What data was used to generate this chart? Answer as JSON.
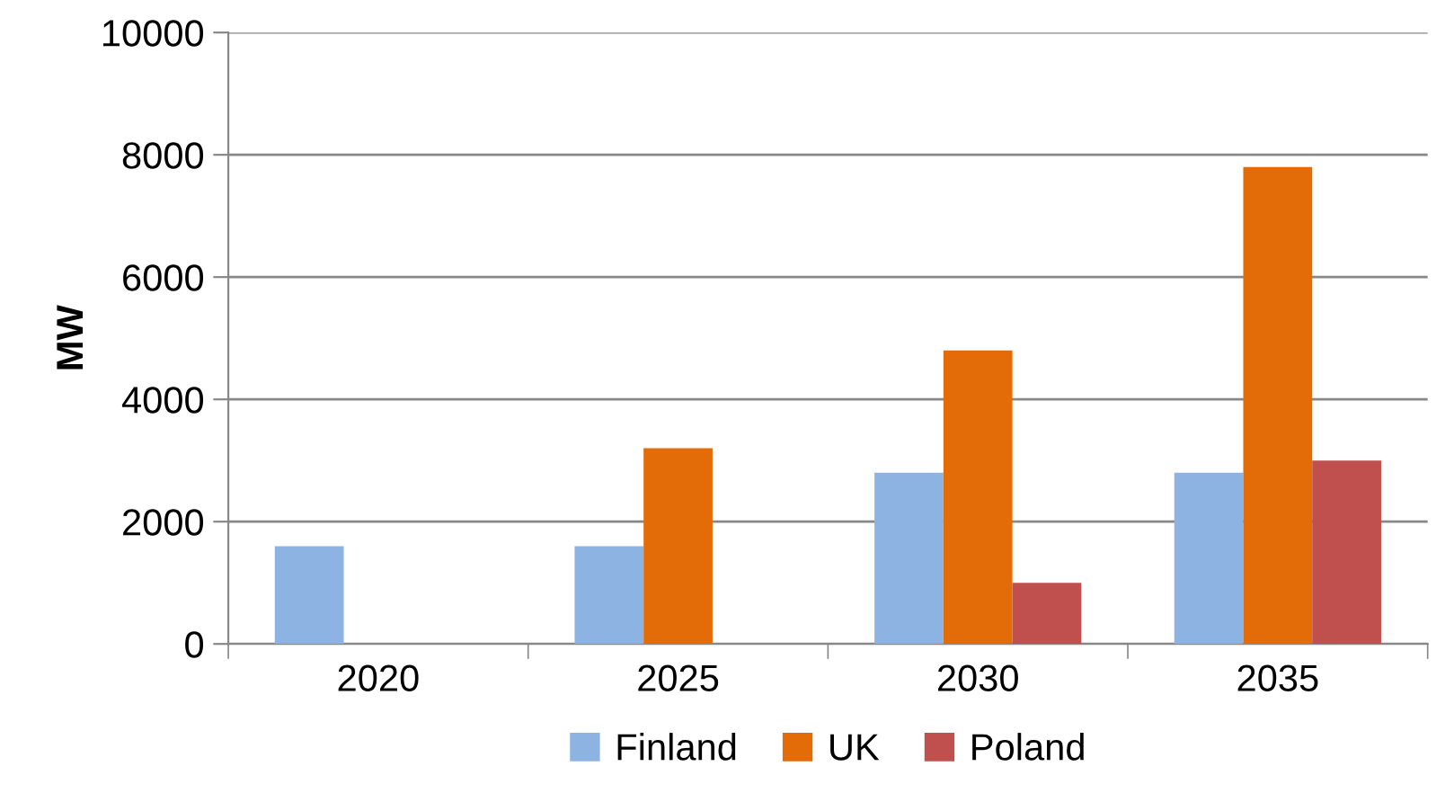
{
  "chart_data": {
    "type": "bar",
    "ylabel": "MW",
    "categories": [
      "2020",
      "2025",
      "2030",
      "2035"
    ],
    "series": [
      {
        "name": "Finland",
        "color": "#8db3e2",
        "values": [
          1600,
          1600,
          2800,
          2800
        ]
      },
      {
        "name": "UK",
        "color": "#e36c09",
        "values": [
          0,
          3200,
          4800,
          7800
        ]
      },
      {
        "name": "Poland",
        "color": "#c0504d",
        "values": [
          0,
          0,
          1000,
          3000
        ]
      }
    ],
    "ylim": [
      0,
      10000
    ],
    "yticks": [
      0,
      2000,
      4000,
      6000,
      8000,
      10000
    ],
    "grid": "y",
    "legend": "bottom"
  }
}
